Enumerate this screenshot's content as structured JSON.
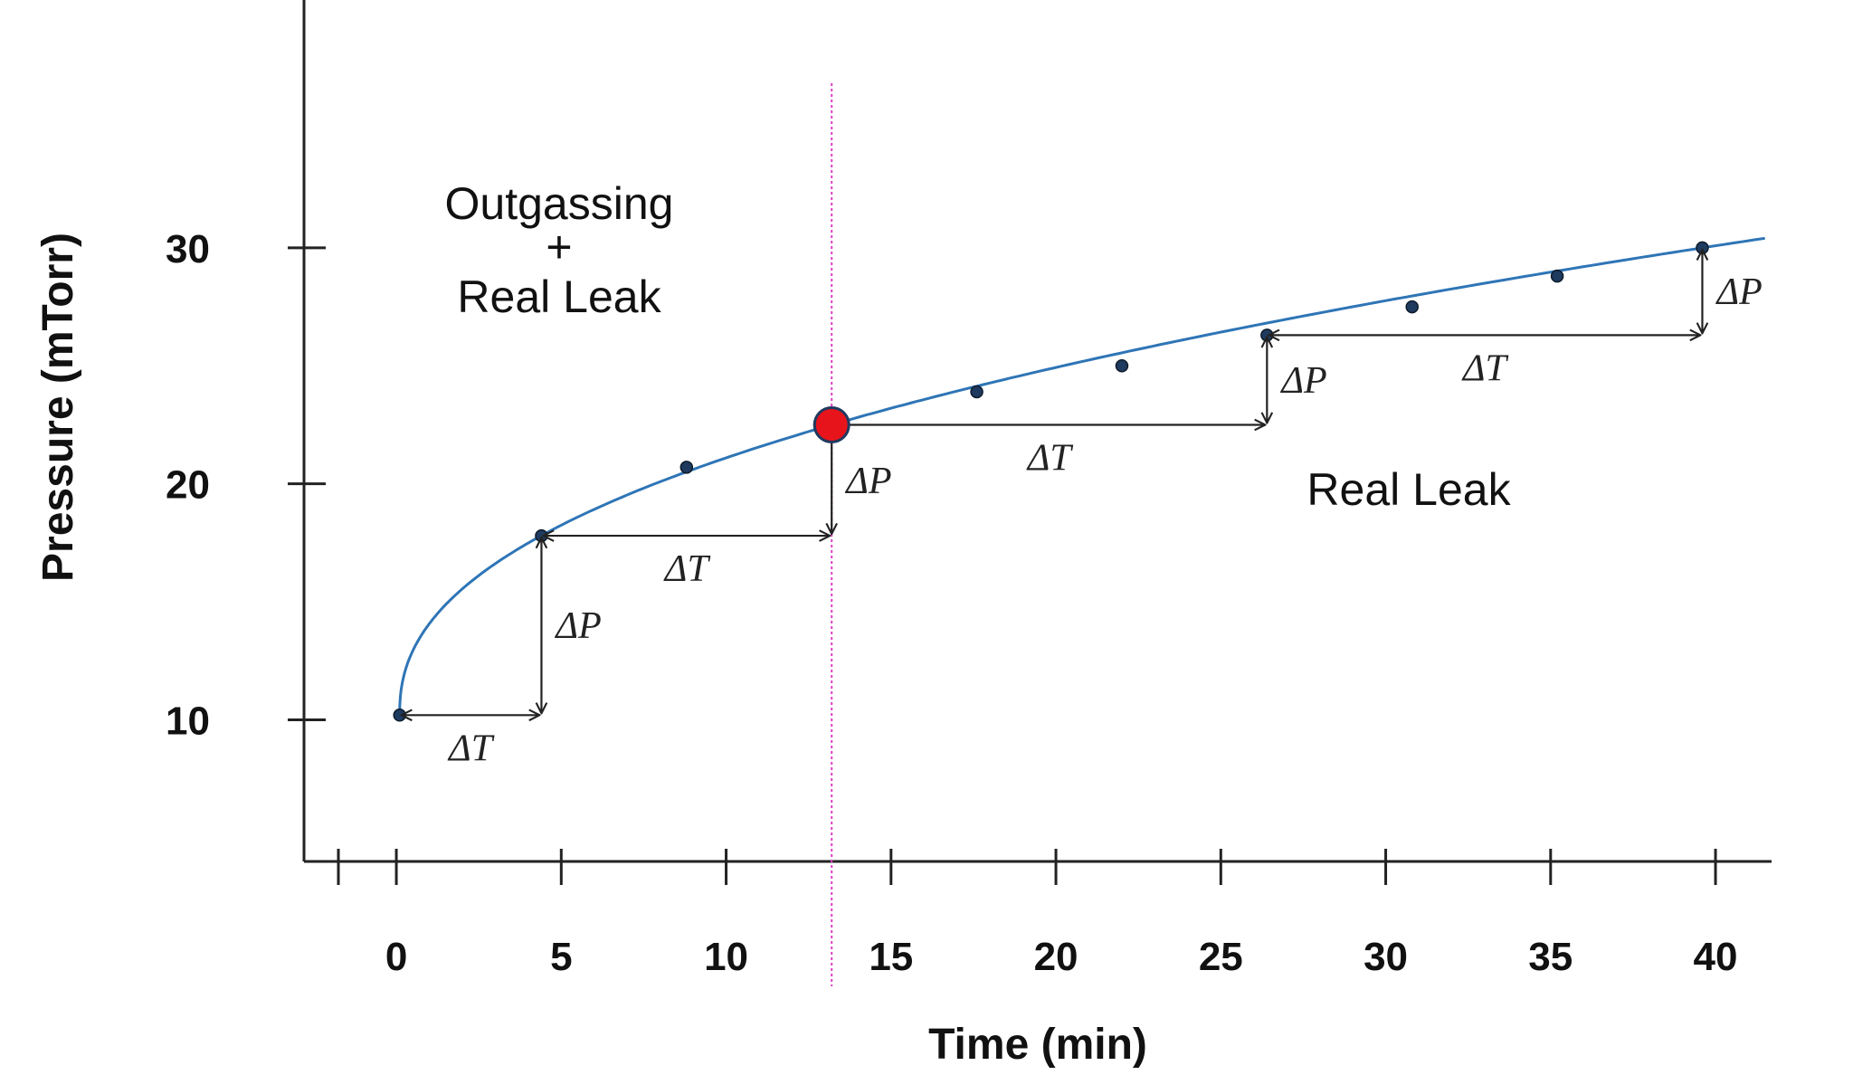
{
  "chart_data": {
    "type": "line",
    "xlabel": "Time (min)",
    "ylabel": "Pressure (mTorr)",
    "x_ticks": [
      "0",
      "5",
      "10",
      "15",
      "20",
      "25",
      "30",
      "35",
      "40"
    ],
    "y_ticks": [
      "10",
      "20",
      "30"
    ],
    "xlim": [
      -2.8,
      41.7
    ],
    "ylim": [
      4,
      40.5
    ],
    "grid": false,
    "series": [
      {
        "color": "#2e75b6",
        "points": [
          [
            0.1,
            10.2
          ],
          [
            4.4,
            17.8
          ],
          [
            8.8,
            20.7
          ],
          [
            13.2,
            22.5
          ],
          [
            17.6,
            23.9
          ],
          [
            22.0,
            25.0
          ],
          [
            26.4,
            26.3
          ],
          [
            30.8,
            27.5
          ],
          [
            35.2,
            28.8
          ],
          [
            39.6,
            30.0
          ]
        ]
      }
    ],
    "curve": {
      "start_x": 0.1,
      "end_x": 41.5
    },
    "highlight_point": {
      "x": 13.2,
      "y": 22.5,
      "color": "#e8141c"
    },
    "divider_x": 13.2,
    "divider_color": "#e040c8",
    "region_labels": [
      {
        "lines": [
          "Outgassing",
          "+",
          "Real Leak"
        ]
      },
      {
        "lines": [
          "Real Leak"
        ]
      }
    ],
    "steps": [
      {
        "x0": 0.1,
        "y0": 10.2,
        "x1": 4.4,
        "y1": 17.8,
        "dt_label": "ΔT",
        "dp_label": "ΔP"
      },
      {
        "x0": 4.4,
        "y0": 17.8,
        "x1": 13.2,
        "y1": 22.5,
        "dt_label": "ΔT",
        "dp_label": "ΔP"
      },
      {
        "x0": 13.2,
        "y0": 22.5,
        "x1": 26.4,
        "y1": 26.3,
        "dt_label": "ΔT",
        "dp_label": "ΔP"
      },
      {
        "x0": 26.4,
        "y0": 26.3,
        "x1": 39.6,
        "y1": 30.0,
        "dt_label": "ΔT",
        "dp_label": "ΔP"
      }
    ]
  }
}
